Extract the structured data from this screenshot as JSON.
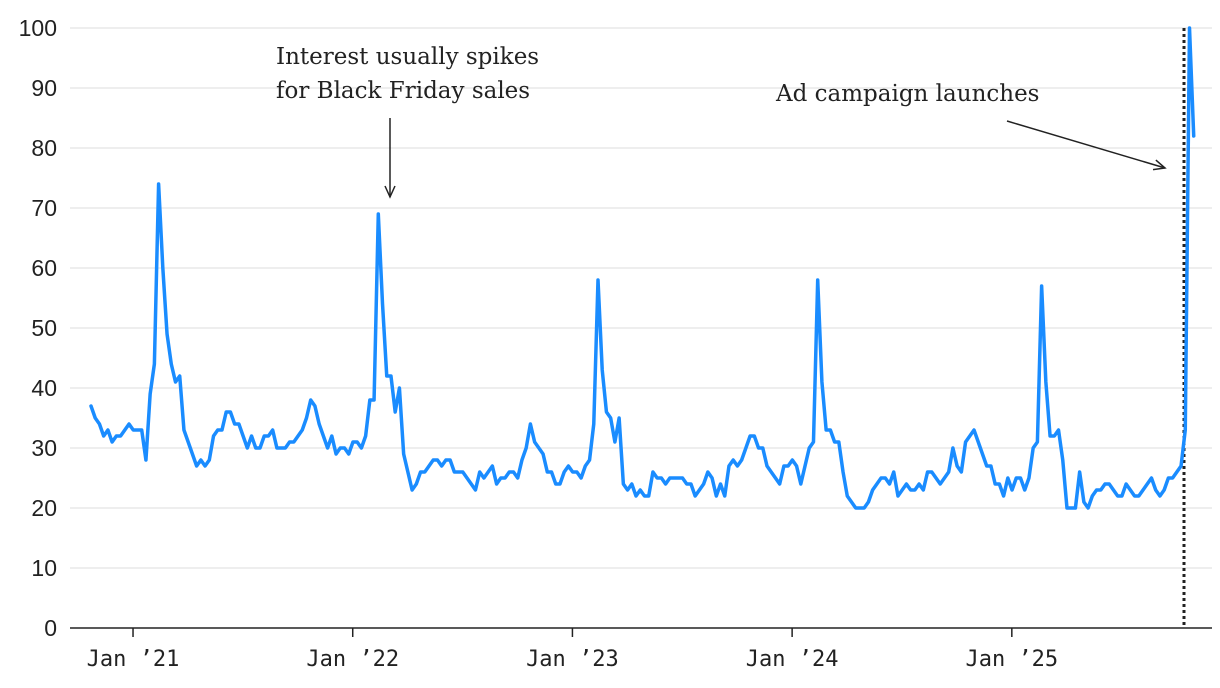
{
  "chart_data": {
    "type": "line",
    "title": "",
    "xlabel": "",
    "ylabel": "",
    "ylim": [
      0,
      100
    ],
    "yticks": [
      "0",
      "10",
      "20",
      "30",
      "40",
      "50",
      "60",
      "70",
      "80",
      "90",
      "100"
    ],
    "grid": true,
    "xticks": [
      {
        "label": "Jan ’21",
        "week": 9
      },
      {
        "label": "Jan ’22",
        "week": 61
      },
      {
        "label": "Jan ’23",
        "week": 113
      },
      {
        "label": "Jan ’24",
        "week": 165
      },
      {
        "label": "Jan ’25",
        "week": 217
      }
    ],
    "series": [
      {
        "name": "Search interest",
        "color": "#1a8cff",
        "values": [
          37,
          35,
          34,
          32,
          33,
          31,
          32,
          32,
          33,
          34,
          33,
          33,
          33,
          28,
          39,
          44,
          74,
          60,
          49,
          44,
          41,
          42,
          33,
          31,
          29,
          27,
          28,
          27,
          28,
          32,
          33,
          33,
          36,
          36,
          34,
          34,
          32,
          30,
          32,
          30,
          30,
          32,
          32,
          33,
          30,
          30,
          30,
          31,
          31,
          32,
          33,
          35,
          38,
          37,
          34,
          32,
          30,
          32,
          29,
          30,
          30,
          29,
          31,
          31,
          30,
          32,
          38,
          38,
          69,
          54,
          42,
          42,
          36,
          40,
          29,
          26,
          23,
          24,
          26,
          26,
          27,
          28,
          28,
          27,
          28,
          28,
          26,
          26,
          26,
          25,
          24,
          23,
          26,
          25,
          26,
          27,
          24,
          25,
          25,
          26,
          26,
          25,
          28,
          30,
          34,
          31,
          30,
          29,
          26,
          26,
          24,
          24,
          26,
          27,
          26,
          26,
          25,
          27,
          28,
          34,
          58,
          43,
          36,
          35,
          31,
          35,
          24,
          23,
          24,
          22,
          23,
          22,
          22,
          26,
          25,
          25,
          24,
          25,
          25,
          25,
          25,
          24,
          24,
          22,
          23,
          24,
          26,
          25,
          22,
          24,
          22,
          27,
          28,
          27,
          28,
          30,
          32,
          32,
          30,
          30,
          27,
          26,
          25,
          24,
          27,
          27,
          28,
          27,
          24,
          27,
          30,
          31,
          58,
          41,
          33,
          33,
          31,
          31,
          26,
          22,
          21,
          20,
          20,
          20,
          21,
          23,
          24,
          25,
          25,
          24,
          26,
          22,
          23,
          24,
          23,
          23,
          24,
          23,
          26,
          26,
          25,
          24,
          25,
          26,
          30,
          27,
          26,
          31,
          32,
          33,
          31,
          29,
          27,
          27,
          24,
          24,
          22,
          25,
          23,
          25,
          25,
          23,
          25,
          30,
          31,
          57,
          41,
          32,
          32,
          33,
          28,
          20,
          20,
          20,
          26,
          21,
          20,
          22,
          23,
          23,
          24,
          24,
          23,
          22,
          22,
          24,
          23,
          22,
          22,
          23,
          24,
          25,
          23,
          22,
          23,
          25,
          25,
          26,
          27,
          33,
          100,
          82
        ]
      }
    ],
    "annotations": [
      {
        "lines": [
          "Interest usually spikes",
          "for Black Friday sales"
        ],
        "target_week": 69,
        "target_value": 71
      },
      {
        "lines": [
          "Ad campaign launches"
        ],
        "target_week": 250,
        "target_value": 77,
        "marker": "dotted vertical line at campaign launch"
      }
    ]
  }
}
